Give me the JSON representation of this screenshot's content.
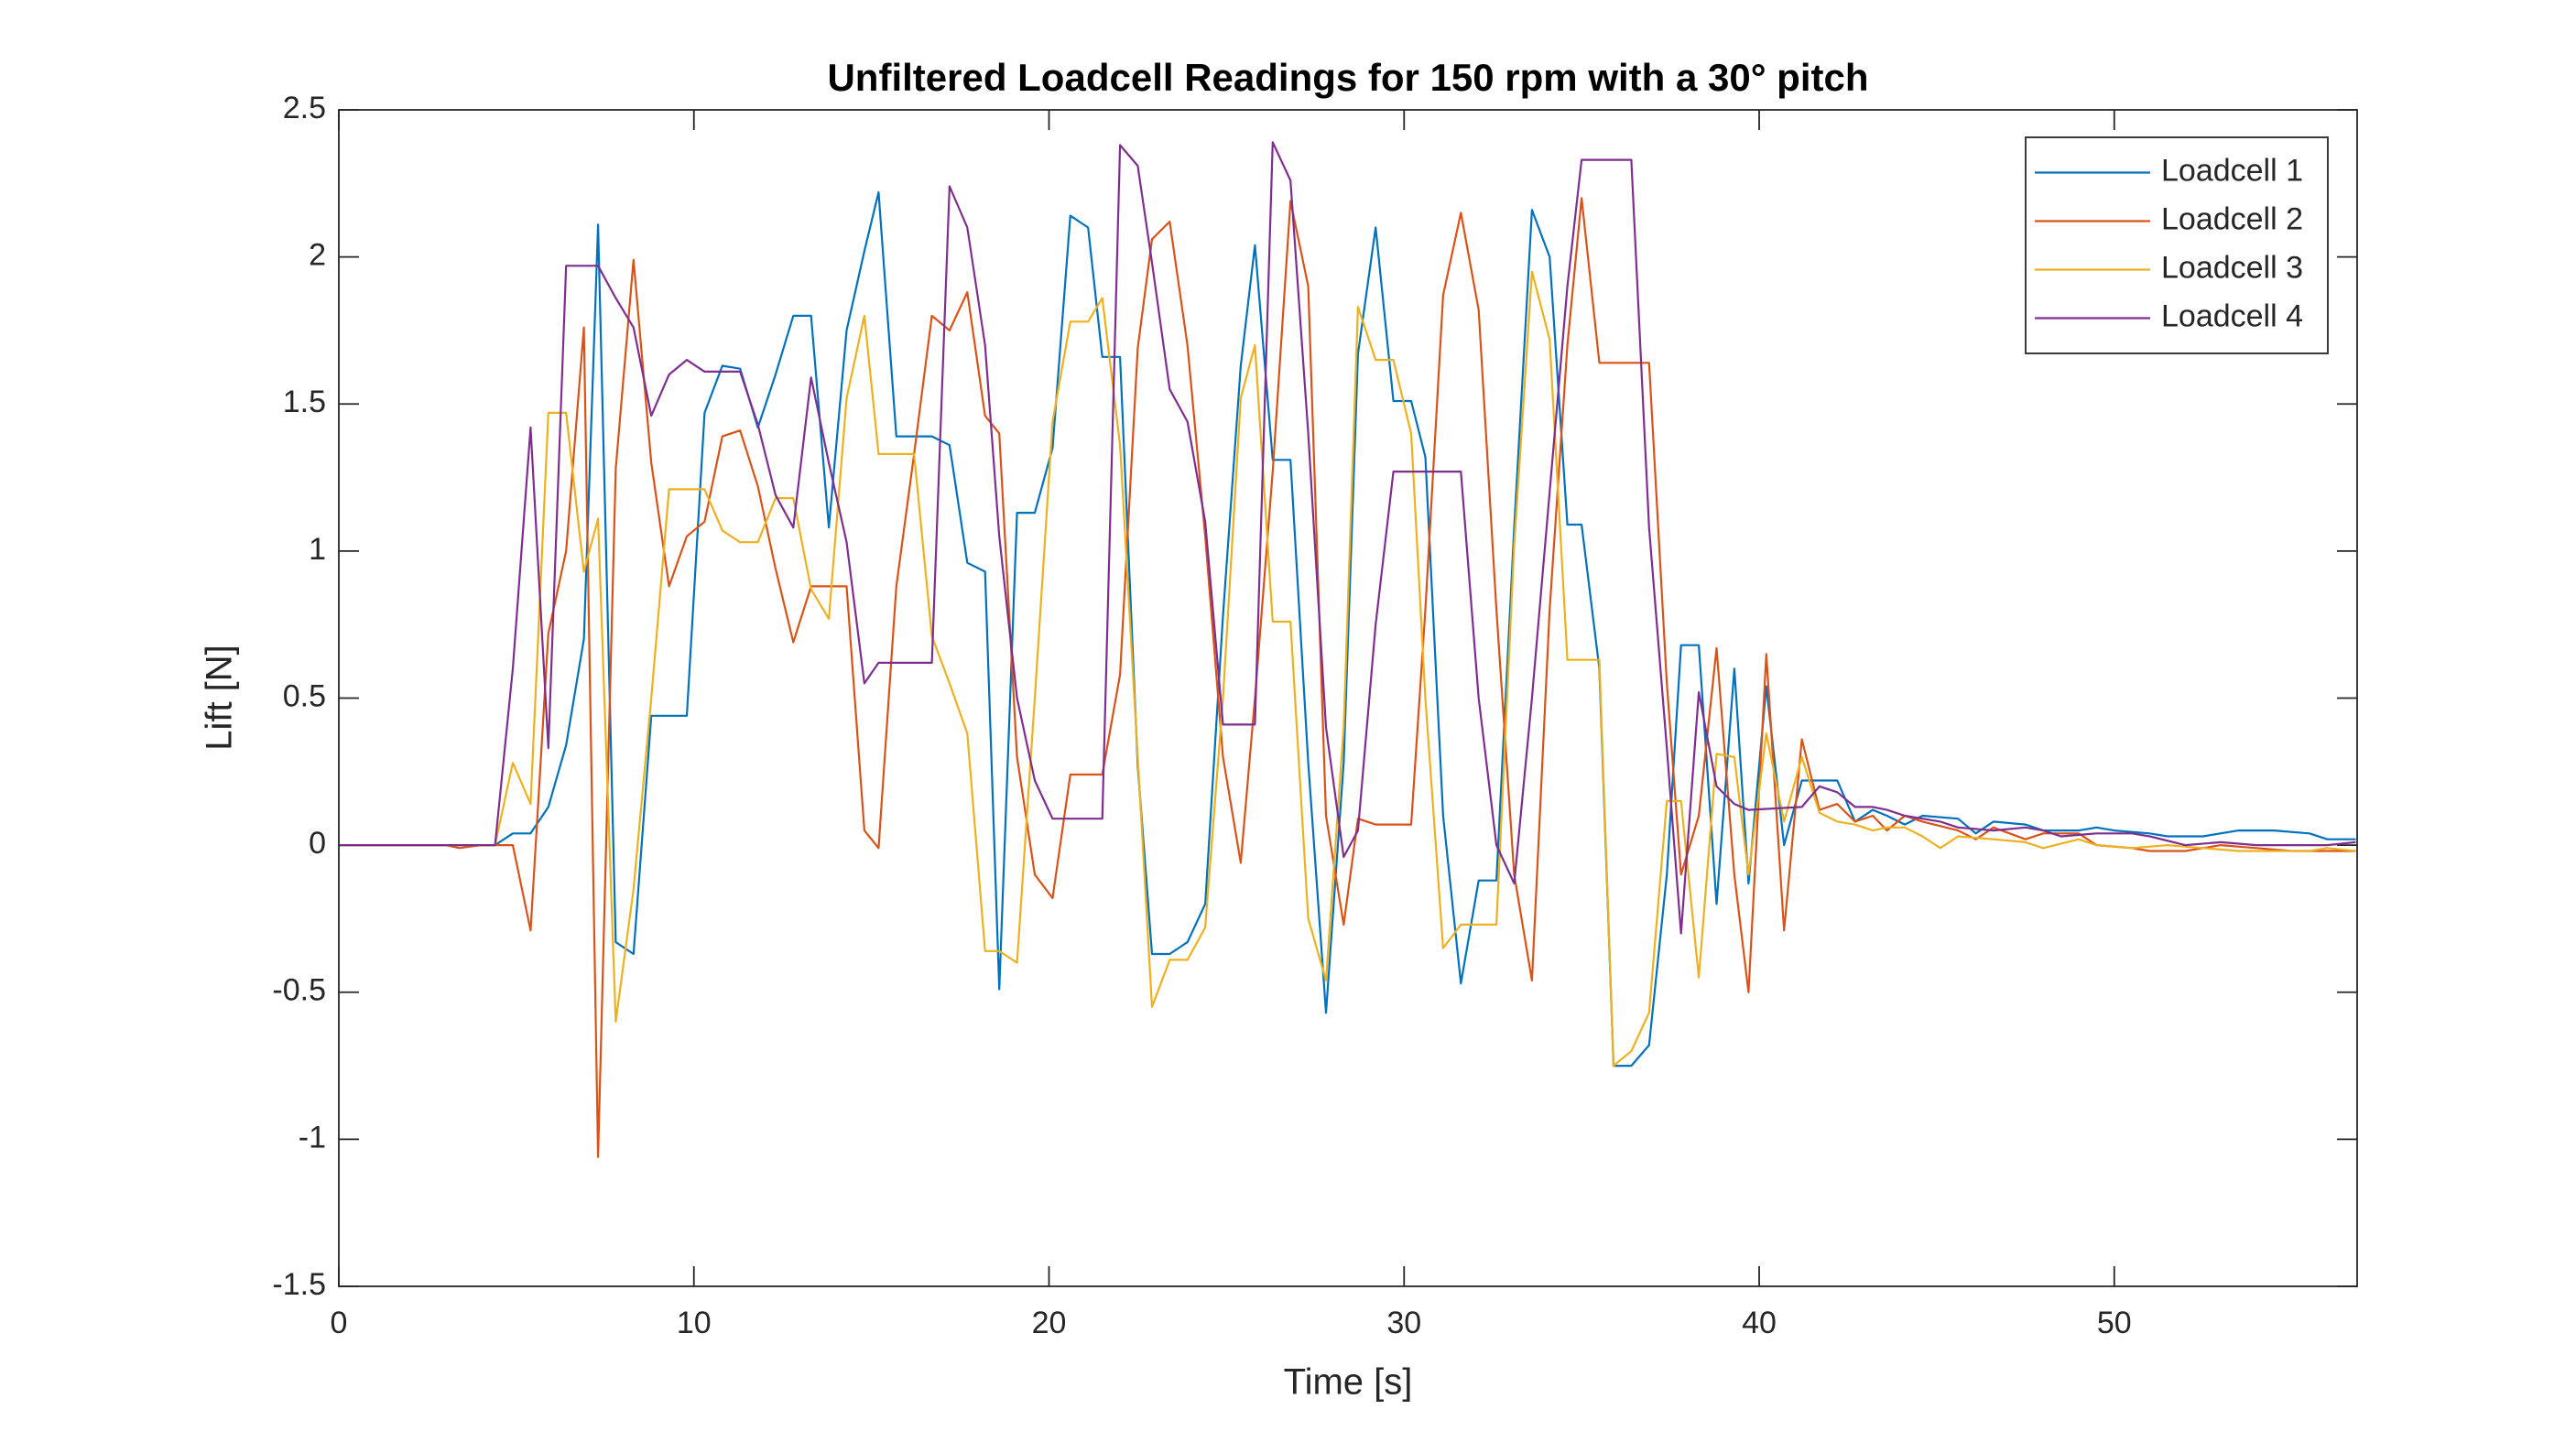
{
  "chart_data": {
    "type": "line",
    "title": "Unfiltered Loadcell Readings for 150 rpm with a 30° pitch",
    "xlabel": "Time [s]",
    "ylabel": "Lift [N]",
    "xlim": [
      0,
      56.84
    ],
    "ylim": [
      -1.5,
      2.5
    ],
    "xticks": [
      0,
      10,
      20,
      30,
      40,
      50
    ],
    "yticks": [
      -1.5,
      -1,
      -0.5,
      0,
      0.5,
      1,
      1.5,
      2,
      2.5
    ],
    "grid": false,
    "legend": "upper right",
    "series": [
      {
        "name": "Loadcell 1",
        "color": "#0072BD",
        "x": [
          0,
          4.4,
          4.9,
          5.4,
          5.9,
          6.4,
          6.9,
          7.3,
          7.8,
          8.3,
          8.8,
          9.8,
          10.3,
          10.8,
          11.3,
          11.8,
          12.3,
          12.8,
          13.3,
          13.8,
          14.3,
          14.8,
          15.2,
          15.7,
          16.7,
          17.2,
          17.7,
          18.2,
          18.6,
          19.1,
          19.6,
          20.1,
          20.6,
          21.1,
          21.5,
          22,
          22.5,
          22.9,
          23.4,
          23.9,
          24.4,
          24.9,
          25.4,
          25.8,
          26.3,
          26.8,
          27.3,
          27.8,
          28.3,
          28.7,
          29.2,
          29.7,
          30.2,
          30.6,
          31.1,
          31.6,
          32.1,
          32.6,
          33.1,
          33.6,
          34.1,
          34.6,
          35,
          35.5,
          35.9,
          36.4,
          36.9,
          37.4,
          37.8,
          38.3,
          38.8,
          39.3,
          39.7,
          40.2,
          40.7,
          41.2,
          42.2,
          42.7,
          43.2,
          43.6,
          44.1,
          44.6,
          45.6,
          46.1,
          46.6,
          47.5,
          48,
          49,
          49.5,
          50,
          51,
          51.5,
          52.5,
          53.5,
          54.5,
          55.5,
          56,
          56.8
        ],
        "values": [
          0,
          0,
          0.04,
          0.04,
          0.13,
          0.34,
          0.7,
          2.11,
          -0.33,
          -0.37,
          0.44,
          0.44,
          1.47,
          1.63,
          1.62,
          1.42,
          1.6,
          1.8,
          1.8,
          1.08,
          1.75,
          2.02,
          2.22,
          1.39,
          1.39,
          1.36,
          0.96,
          0.93,
          -0.49,
          1.13,
          1.13,
          1.35,
          2.14,
          2.1,
          1.66,
          1.66,
          0.27,
          -0.37,
          -0.37,
          -0.33,
          -0.2,
          0.78,
          1.63,
          2.04,
          1.31,
          1.31,
          0.28,
          -0.57,
          0.28,
          1.67,
          2.1,
          1.51,
          1.51,
          1.32,
          0.1,
          -0.47,
          -0.12,
          -0.12,
          1.08,
          2.16,
          2.0,
          1.09,
          1.09,
          0.6,
          -0.75,
          -0.75,
          -0.68,
          -0.1,
          0.68,
          0.68,
          -0.2,
          0.6,
          -0.13,
          0.54,
          0.0,
          0.22,
          0.22,
          0.08,
          0.12,
          0.1,
          0.07,
          0.1,
          0.09,
          0.04,
          0.08,
          0.07,
          0.05,
          0.05,
          0.06,
          0.05,
          0.04,
          0.03,
          0.03,
          0.05,
          0.05,
          0.04,
          0.02,
          0.02
        ]
      },
      {
        "name": "Loadcell 2",
        "color": "#D95319",
        "x": [
          0,
          3,
          3.4,
          4,
          4.9,
          5.4,
          5.9,
          6.4,
          6.9,
          7.3,
          7.8,
          8.3,
          8.8,
          9.3,
          9.8,
          10.3,
          10.8,
          11.3,
          11.8,
          12.3,
          12.8,
          13.3,
          14.3,
          14.8,
          15.2,
          15.7,
          16.2,
          16.7,
          17.2,
          17.7,
          18.2,
          18.6,
          19.1,
          19.6,
          20.1,
          20.6,
          21.5,
          22,
          22.5,
          22.9,
          23.4,
          23.9,
          24.4,
          24.9,
          25.4,
          25.8,
          26.3,
          26.8,
          27.3,
          27.8,
          28.3,
          28.7,
          29.2,
          30.2,
          30.6,
          31.1,
          31.6,
          32.1,
          32.6,
          33.1,
          33.6,
          34.1,
          34.6,
          35,
          35.5,
          36.9,
          37.4,
          37.8,
          38.3,
          38.8,
          39.3,
          39.7,
          40.2,
          40.7,
          41.2,
          41.7,
          42.2,
          42.7,
          43.2,
          43.6,
          44.1,
          44.6,
          45.6,
          46.1,
          46.6,
          47.5,
          48,
          49,
          49.5,
          50.5,
          51,
          52,
          53,
          54,
          55,
          56.8
        ],
        "values": [
          0,
          0,
          -0.01,
          0,
          0,
          -0.29,
          0.72,
          1.0,
          1.76,
          -1.06,
          1.28,
          1.99,
          1.3,
          0.88,
          1.05,
          1.1,
          1.39,
          1.41,
          1.22,
          0.94,
          0.69,
          0.88,
          0.88,
          0.05,
          -0.01,
          0.88,
          1.33,
          1.8,
          1.75,
          1.88,
          1.46,
          1.4,
          0.3,
          -0.1,
          -0.18,
          0.24,
          0.24,
          0.58,
          1.69,
          2.06,
          2.12,
          1.7,
          1.05,
          0.3,
          -0.06,
          0.5,
          1.27,
          2.19,
          1.9,
          0.1,
          -0.27,
          0.09,
          0.07,
          0.07,
          0.8,
          1.87,
          2.15,
          1.82,
          0.8,
          -0.1,
          -0.46,
          0.8,
          1.7,
          2.2,
          1.64,
          1.64,
          0.55,
          -0.1,
          0.1,
          0.67,
          -0.1,
          -0.5,
          0.65,
          -0.29,
          0.36,
          0.12,
          0.14,
          0.08,
          0.1,
          0.05,
          0.1,
          0.08,
          0.05,
          0.02,
          0.06,
          0.02,
          0.04,
          0.04,
          0.0,
          -0.01,
          -0.02,
          -0.02,
          0.0,
          -0.01,
          -0.02,
          -0.02
        ]
      },
      {
        "name": "Loadcell 3",
        "color": "#EDB120",
        "x": [
          0,
          4.4,
          4.9,
          5.4,
          5.9,
          6.4,
          6.9,
          7.3,
          7.8,
          8.3,
          8.8,
          9.3,
          10.3,
          10.8,
          11.3,
          11.8,
          12.3,
          12.8,
          13.3,
          13.8,
          14.3,
          14.8,
          15.2,
          16.2,
          16.7,
          17.2,
          17.7,
          18.2,
          18.6,
          19.1,
          19.6,
          20.1,
          20.6,
          21.1,
          21.5,
          22,
          22.5,
          22.9,
          23.4,
          23.9,
          24.4,
          24.9,
          25.4,
          25.8,
          26.3,
          26.8,
          27.3,
          27.8,
          28.3,
          28.7,
          29.2,
          29.7,
          30.2,
          30.6,
          31.1,
          31.6,
          32.6,
          33.1,
          33.6,
          34.1,
          34.6,
          35.5,
          35.9,
          36.4,
          36.9,
          37.4,
          37.8,
          38.3,
          38.8,
          39.3,
          39.7,
          40.2,
          40.7,
          41.2,
          41.7,
          42.2,
          42.7,
          43.2,
          43.6,
          44.1,
          44.6,
          45.1,
          45.6,
          46.6,
          47.5,
          48,
          49,
          49.5,
          50.5,
          51.5,
          52.5,
          53.5,
          54.5,
          55.5,
          56,
          56.8
        ],
        "values": [
          0,
          0,
          0.28,
          0.14,
          1.47,
          1.47,
          0.93,
          1.11,
          -0.6,
          -0.15,
          0.5,
          1.21,
          1.21,
          1.07,
          1.03,
          1.03,
          1.18,
          1.18,
          0.87,
          0.77,
          1.52,
          1.8,
          1.33,
          1.33,
          0.71,
          0.55,
          0.38,
          -0.36,
          -0.36,
          -0.4,
          0.5,
          1.44,
          1.78,
          1.78,
          1.86,
          1.36,
          0.3,
          -0.55,
          -0.39,
          -0.39,
          -0.28,
          0.5,
          1.52,
          1.7,
          0.76,
          0.76,
          -0.25,
          -0.46,
          0.4,
          1.83,
          1.65,
          1.65,
          1.4,
          0.5,
          -0.35,
          -0.27,
          -0.27,
          1.02,
          1.95,
          1.72,
          0.63,
          0.63,
          -0.75,
          -0.7,
          -0.57,
          0.15,
          0.15,
          -0.45,
          0.31,
          0.3,
          -0.1,
          0.38,
          0.08,
          0.3,
          0.11,
          0.08,
          0.07,
          0.05,
          0.06,
          0.06,
          0.03,
          -0.01,
          0.03,
          0.02,
          0.01,
          -0.01,
          0.02,
          0,
          -0.01,
          0,
          -0.01,
          -0.02,
          -0.02,
          -0.02,
          -0.01,
          -0.02
        ]
      },
      {
        "name": "Loadcell 4",
        "color": "#7E2F8E",
        "x": [
          0,
          4.4,
          4.9,
          5.4,
          5.9,
          6.4,
          7.3,
          7.8,
          8.3,
          8.8,
          9.3,
          9.8,
          10.3,
          11.3,
          11.8,
          12.3,
          12.8,
          13.3,
          13.8,
          14.3,
          14.8,
          15.2,
          16.7,
          17.2,
          17.7,
          18.2,
          18.6,
          19.1,
          19.6,
          20.1,
          21.5,
          22,
          22.5,
          22.9,
          23.4,
          23.9,
          24.4,
          24.9,
          25.8,
          26.3,
          26.8,
          27.3,
          27.8,
          28.3,
          28.7,
          29.2,
          29.7,
          31.6,
          32.1,
          32.6,
          33.1,
          33.6,
          34.1,
          34.6,
          35,
          36.4,
          36.9,
          37.4,
          37.8,
          38.3,
          38.8,
          39.3,
          39.7,
          41.2,
          41.7,
          42.2,
          42.7,
          43.2,
          43.6,
          44.1,
          45.1,
          45.6,
          46.6,
          47.5,
          48,
          48.5,
          49.5,
          50.5,
          51,
          52,
          53,
          54,
          55,
          56,
          56.8
        ],
        "values": [
          0,
          0,
          0.6,
          1.42,
          0.33,
          1.97,
          1.97,
          1.86,
          1.76,
          1.46,
          1.6,
          1.65,
          1.61,
          1.61,
          1.43,
          1.19,
          1.08,
          1.59,
          1.3,
          1.03,
          0.55,
          0.62,
          0.62,
          2.24,
          2.1,
          1.7,
          1.05,
          0.5,
          0.22,
          0.09,
          0.09,
          2.38,
          2.31,
          1.98,
          1.55,
          1.44,
          1.1,
          0.41,
          0.41,
          2.39,
          2.26,
          1.4,
          0.4,
          -0.04,
          0.05,
          0.75,
          1.27,
          1.27,
          0.5,
          0.0,
          -0.13,
          0.5,
          1.2,
          1.9,
          2.33,
          2.33,
          1.08,
          0.33,
          -0.3,
          0.52,
          0.2,
          0.14,
          0.12,
          0.13,
          0.2,
          0.18,
          0.13,
          0.13,
          0.12,
          0.1,
          0.08,
          0.06,
          0.05,
          0.06,
          0.05,
          0.03,
          0.04,
          0.04,
          0.03,
          0.0,
          0.01,
          0.0,
          0.0,
          0.0,
          0.01
        ]
      }
    ]
  }
}
